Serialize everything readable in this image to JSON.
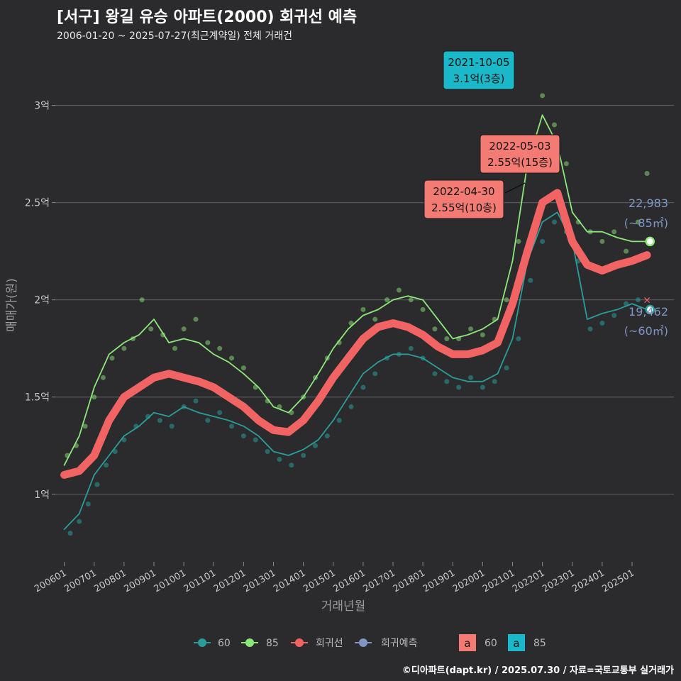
{
  "title": "[서구] 왕길 유승 아파트(2000) 회귀선 예측",
  "subtitle": "2006-01-20 ~ 2025-07-27(최근계약일) 전체 거래건",
  "caption": "©디아파트(dapt.kr) / 2025.07.30 / 자료=국토교통부 실거래가",
  "colors": {
    "background": "#2b2b2d",
    "grid": "#5a5a5c",
    "series_60": "#2a9d9a",
    "series_85": "#8de87a",
    "regression": "#f26464",
    "forecast": "#7f96c4",
    "label_teal": "#1ab8c8",
    "label_salmon": "#f47b73"
  },
  "chart_data": {
    "type": "line",
    "xlabel": "거래년월",
    "ylabel": "매매가(원)",
    "x_tick_labels": [
      "200601",
      "200701",
      "200801",
      "200901",
      "201001",
      "201101",
      "201201",
      "201301",
      "201401",
      "201501",
      "201601",
      "201701",
      "201801",
      "201901",
      "202001",
      "202101",
      "202201",
      "202301",
      "202401",
      "202501"
    ],
    "y_tick_labels": [
      "1억",
      "1.5억",
      "2억",
      "2.5억",
      "3억"
    ],
    "y_ticks": [
      1.0,
      1.5,
      2.0,
      2.5,
      3.0
    ],
    "ylim": [
      0.66,
      3.25
    ],
    "xlim": [
      2005.7,
      2026.4
    ],
    "grid": true,
    "series": [
      {
        "name": "60",
        "x": [
          2006.0,
          2006.5,
          2007.0,
          2007.5,
          2008.0,
          2008.5,
          2009.0,
          2009.5,
          2010.0,
          2010.5,
          2011.0,
          2011.5,
          2012.0,
          2012.5,
          2013.0,
          2013.5,
          2014.0,
          2014.5,
          2015.0,
          2015.5,
          2016.0,
          2016.5,
          2017.0,
          2017.5,
          2018.0,
          2018.5,
          2019.0,
          2019.5,
          2020.0,
          2020.5,
          2021.0,
          2021.5,
          2022.0,
          2022.5,
          2023.0,
          2023.5,
          2024.0,
          2024.5,
          2025.0,
          2025.5
        ],
        "values": [
          0.82,
          0.9,
          1.1,
          1.2,
          1.3,
          1.35,
          1.42,
          1.4,
          1.45,
          1.42,
          1.4,
          1.38,
          1.35,
          1.3,
          1.22,
          1.2,
          1.23,
          1.28,
          1.38,
          1.5,
          1.62,
          1.68,
          1.72,
          1.72,
          1.7,
          1.65,
          1.6,
          1.58,
          1.58,
          1.62,
          1.8,
          2.2,
          2.4,
          2.45,
          2.3,
          1.9,
          1.93,
          1.95,
          1.98,
          1.95
        ]
      },
      {
        "name": "85",
        "x": [
          2006.0,
          2006.5,
          2007.0,
          2007.5,
          2008.0,
          2008.5,
          2009.0,
          2009.5,
          2010.0,
          2010.5,
          2011.0,
          2011.5,
          2012.0,
          2012.5,
          2013.0,
          2013.5,
          2014.0,
          2014.5,
          2015.0,
          2015.5,
          2016.0,
          2016.5,
          2017.0,
          2017.5,
          2018.0,
          2018.5,
          2019.0,
          2019.5,
          2020.0,
          2020.5,
          2021.0,
          2021.5,
          2022.0,
          2022.5,
          2023.0,
          2023.5,
          2024.0,
          2024.5,
          2025.0,
          2025.5
        ],
        "values": [
          1.15,
          1.3,
          1.55,
          1.72,
          1.78,
          1.82,
          1.9,
          1.78,
          1.8,
          1.78,
          1.72,
          1.68,
          1.62,
          1.55,
          1.45,
          1.42,
          1.5,
          1.62,
          1.75,
          1.85,
          1.92,
          1.95,
          2.0,
          2.02,
          2.0,
          1.9,
          1.8,
          1.82,
          1.85,
          1.9,
          2.2,
          2.7,
          2.95,
          2.8,
          2.45,
          2.35,
          2.35,
          2.32,
          2.3,
          2.3
        ]
      },
      {
        "name": "회귀선",
        "x": [
          2006.0,
          2006.5,
          2007.0,
          2007.5,
          2008.0,
          2008.5,
          2009.0,
          2009.5,
          2010.0,
          2010.5,
          2011.0,
          2011.5,
          2012.0,
          2012.5,
          2013.0,
          2013.5,
          2014.0,
          2014.5,
          2015.0,
          2015.5,
          2016.0,
          2016.5,
          2017.0,
          2017.5,
          2018.0,
          2018.5,
          2019.0,
          2019.5,
          2020.0,
          2020.5,
          2021.0,
          2021.5,
          2022.0,
          2022.5,
          2023.0,
          2023.5,
          2024.0,
          2024.5,
          2025.0,
          2025.5
        ],
        "values": [
          1.1,
          1.12,
          1.2,
          1.38,
          1.5,
          1.55,
          1.6,
          1.62,
          1.6,
          1.58,
          1.55,
          1.5,
          1.45,
          1.38,
          1.33,
          1.32,
          1.38,
          1.48,
          1.6,
          1.7,
          1.8,
          1.86,
          1.88,
          1.86,
          1.82,
          1.76,
          1.72,
          1.72,
          1.74,
          1.78,
          1.98,
          2.25,
          2.5,
          2.55,
          2.3,
          2.18,
          2.15,
          2.18,
          2.2,
          2.23
        ]
      }
    ],
    "points_60": [
      [
        2006.2,
        0.8
      ],
      [
        2006.5,
        0.86
      ],
      [
        2006.8,
        0.95
      ],
      [
        2007.1,
        1.05
      ],
      [
        2007.4,
        1.15
      ],
      [
        2007.7,
        1.22
      ],
      [
        2008.0,
        1.28
      ],
      [
        2008.4,
        1.35
      ],
      [
        2008.8,
        1.4
      ],
      [
        2009.2,
        1.38
      ],
      [
        2009.6,
        1.35
      ],
      [
        2010.0,
        1.45
      ],
      [
        2010.4,
        1.48
      ],
      [
        2010.8,
        1.38
      ],
      [
        2011.2,
        1.42
      ],
      [
        2011.6,
        1.35
      ],
      [
        2012.0,
        1.3
      ],
      [
        2012.4,
        1.28
      ],
      [
        2012.8,
        1.22
      ],
      [
        2013.2,
        1.18
      ],
      [
        2013.6,
        1.15
      ],
      [
        2014.0,
        1.2
      ],
      [
        2014.4,
        1.25
      ],
      [
        2014.8,
        1.3
      ],
      [
        2015.2,
        1.38
      ],
      [
        2015.6,
        1.45
      ],
      [
        2016.0,
        1.55
      ],
      [
        2016.4,
        1.62
      ],
      [
        2016.8,
        1.7
      ],
      [
        2017.2,
        1.72
      ],
      [
        2017.6,
        1.75
      ],
      [
        2018.0,
        1.7
      ],
      [
        2018.4,
        1.62
      ],
      [
        2018.8,
        1.58
      ],
      [
        2019.2,
        1.55
      ],
      [
        2019.6,
        1.6
      ],
      [
        2020.0,
        1.55
      ],
      [
        2020.4,
        1.58
      ],
      [
        2020.8,
        1.65
      ],
      [
        2021.2,
        1.8
      ],
      [
        2021.6,
        2.1
      ],
      [
        2022.0,
        2.3
      ],
      [
        2022.4,
        2.4
      ],
      [
        2022.8,
        2.35
      ],
      [
        2023.2,
        2.2
      ],
      [
        2023.6,
        1.85
      ],
      [
        2024.0,
        1.88
      ],
      [
        2024.4,
        1.92
      ],
      [
        2024.8,
        1.98
      ],
      [
        2025.2,
        2.0
      ]
    ],
    "points_85": [
      [
        2006.1,
        1.2
      ],
      [
        2006.4,
        1.25
      ],
      [
        2006.7,
        1.35
      ],
      [
        2007.0,
        1.5
      ],
      [
        2007.3,
        1.6
      ],
      [
        2007.6,
        1.7
      ],
      [
        2008.0,
        1.75
      ],
      [
        2008.3,
        1.8
      ],
      [
        2008.6,
        2.0
      ],
      [
        2008.9,
        1.85
      ],
      [
        2009.3,
        1.82
      ],
      [
        2009.7,
        1.75
      ],
      [
        2010.0,
        1.85
      ],
      [
        2010.4,
        1.9
      ],
      [
        2010.8,
        1.78
      ],
      [
        2011.2,
        1.75
      ],
      [
        2011.6,
        1.7
      ],
      [
        2012.0,
        1.65
      ],
      [
        2012.4,
        1.55
      ],
      [
        2012.8,
        1.48
      ],
      [
        2013.2,
        1.45
      ],
      [
        2013.6,
        1.42
      ],
      [
        2014.0,
        1.5
      ],
      [
        2014.4,
        1.6
      ],
      [
        2014.8,
        1.7
      ],
      [
        2015.2,
        1.78
      ],
      [
        2015.6,
        1.88
      ],
      [
        2016.0,
        1.95
      ],
      [
        2016.4,
        1.9
      ],
      [
        2016.8,
        2.0
      ],
      [
        2017.2,
        2.05
      ],
      [
        2017.6,
        2.0
      ],
      [
        2018.0,
        1.95
      ],
      [
        2018.4,
        1.85
      ],
      [
        2018.8,
        1.8
      ],
      [
        2019.2,
        1.8
      ],
      [
        2019.6,
        1.85
      ],
      [
        2020.0,
        1.82
      ],
      [
        2020.4,
        1.9
      ],
      [
        2020.8,
        2.0
      ],
      [
        2021.2,
        2.3
      ],
      [
        2021.6,
        2.7
      ],
      [
        2022.0,
        3.05
      ],
      [
        2022.4,
        2.9
      ],
      [
        2022.8,
        2.7
      ],
      [
        2023.2,
        2.4
      ],
      [
        2023.6,
        2.35
      ],
      [
        2024.0,
        2.3
      ],
      [
        2024.4,
        2.35
      ],
      [
        2024.8,
        2.25
      ],
      [
        2025.2,
        2.4
      ],
      [
        2025.5,
        2.65
      ]
    ],
    "annotations": [
      {
        "date": "2021-10-05",
        "value": "3.1억(3층)",
        "style": "teal"
      },
      {
        "date": "2022-05-03",
        "value": "2.55억(15층)",
        "style": "salmon"
      },
      {
        "date": "2022-04-30",
        "value": "2.55억(10층)",
        "style": "salmon"
      }
    ],
    "end_labels": [
      {
        "value": "22,983",
        "sub": "(~85㎡)"
      },
      {
        "value": "19,462",
        "sub": "(~60㎡)"
      }
    ],
    "legend": {
      "position": "bottom",
      "items": [
        "60",
        "85",
        "회귀선",
        "회귀예측"
      ],
      "box_items": [
        {
          "glyph": "a",
          "label": "60"
        },
        {
          "glyph": "a",
          "label": "85"
        }
      ]
    }
  }
}
